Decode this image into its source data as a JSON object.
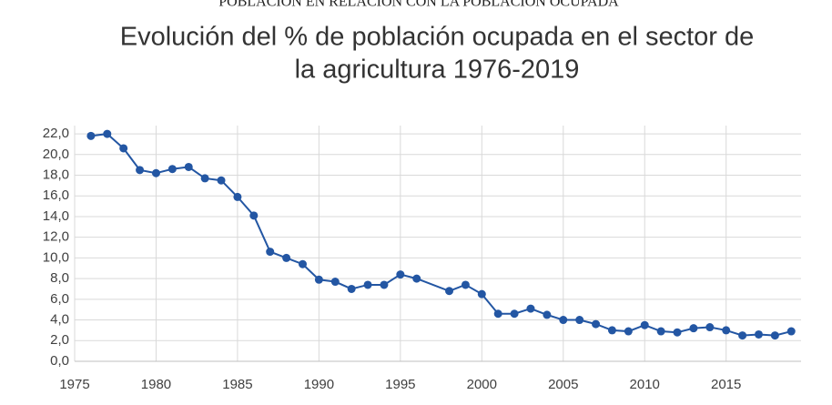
{
  "header": "POBLACIÓN EN RELACIÓN CON LA POBLACIÓN OCUPADA",
  "chart_data": {
    "type": "line",
    "title": [
      "Evolución del % de población ocupada en el sector de",
      "la agricultura 1976-2019"
    ],
    "x": [
      1976,
      1977,
      1978,
      1979,
      1980,
      1981,
      1982,
      1983,
      1984,
      1985,
      1986,
      1987,
      1988,
      1989,
      1990,
      1991,
      1992,
      1993,
      1994,
      1995,
      1996,
      1998,
      1999,
      2000,
      2001,
      2002,
      2003,
      2004,
      2005,
      2006,
      2007,
      2008,
      2009,
      2010,
      2011,
      2012,
      2013,
      2014,
      2015,
      2016,
      2017,
      2018,
      2019
    ],
    "series": [
      {
        "color": "#2356a3",
        "values": [
          21.8,
          22.0,
          20.6,
          18.5,
          18.2,
          18.6,
          18.8,
          17.7,
          17.5,
          15.9,
          14.1,
          10.6,
          10.0,
          9.4,
          7.9,
          7.7,
          7.0,
          7.4,
          7.4,
          8.4,
          8.0,
          6.8,
          7.4,
          6.5,
          4.6,
          4.6,
          5.1,
          4.5,
          4.0,
          4.0,
          3.6,
          3.0,
          2.9,
          3.5,
          2.9,
          2.8,
          3.2,
          3.3,
          3.0,
          2.5,
          2.6,
          2.5,
          2.9
        ]
      }
    ],
    "xlim": [
      1975,
      2019.6
    ],
    "xticks": [
      1975,
      1980,
      1985,
      1990,
      1995,
      2000,
      2005,
      2010,
      2015
    ],
    "ylim": [
      0,
      22.8
    ],
    "yticks": [
      {
        "value": 0,
        "label": "0,0"
      },
      {
        "value": 2,
        "label": "2,0"
      },
      {
        "value": 4,
        "label": "4,0"
      },
      {
        "value": 6,
        "label": "6,0"
      },
      {
        "value": 8,
        "label": "8,0"
      },
      {
        "value": 10,
        "label": "10,0"
      },
      {
        "value": 12,
        "label": "12,0"
      },
      {
        "value": 14,
        "label": "14,0"
      },
      {
        "value": 16,
        "label": "16,0"
      },
      {
        "value": 18,
        "label": "18,0"
      },
      {
        "value": 20,
        "label": "20,0"
      },
      {
        "value": 22,
        "label": "22,0"
      }
    ],
    "grid": true
  }
}
